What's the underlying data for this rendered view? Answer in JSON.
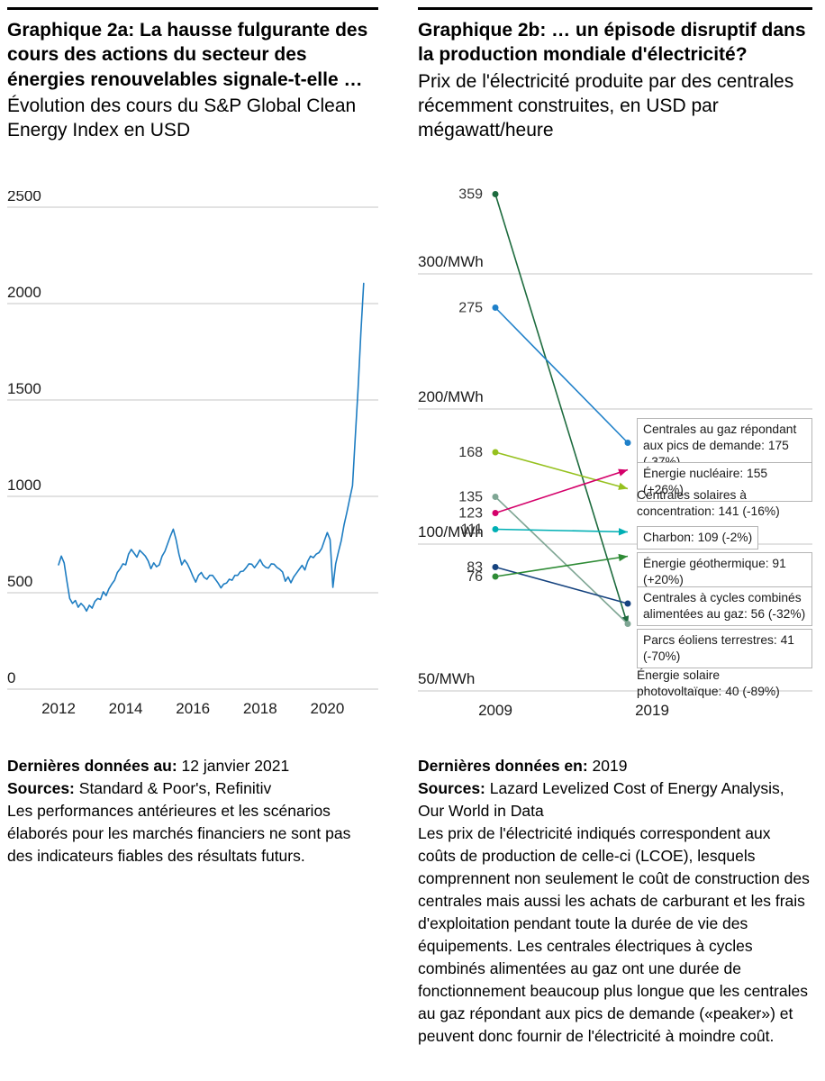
{
  "left_panel": {
    "title": "Graphique 2a: La hausse fulgurante des cours des actions du secteur des énergies renouvelables signale-t-elle …",
    "subtitle": "Évolution des cours du S&P Global Clean Energy Index en USD",
    "footer": {
      "updated_label": "Dernières données au:",
      "updated_value": "12 janvier 2021",
      "sources_label": "Sources:",
      "sources_value": "Standard & Poor's, Refinitiv",
      "note": "Les performances antérieures et les scénarios élaborés pour les marchés financiers ne sont pas des indicateurs fiables des résultats futurs."
    }
  },
  "right_panel": {
    "title": "Graphique 2b: … un épisode disruptif dans la production mondiale d'électricité?",
    "subtitle": "Prix de l'électricité produite par des centrales récemment construites, en USD par mégawatt/heure",
    "footer": {
      "updated_label": "Dernières données en:",
      "updated_value": "2019",
      "sources_label": "Sources:",
      "sources_value": "Lazard Levelized Cost of Energy Analysis, Our World in Data",
      "note": "Les prix de l'électricité indiqués correspondent aux coûts de production de celle-ci (LCOE), lesquels comprennent non seulement le coût de construction des centrales mais aussi les achats de carburant et les frais d'exploitation pendant toute la durée de vie des équipements. Les centrales électriques à cycles combinés alimentées au gaz ont une durée de fonctionnement beaucoup plus longue que les centrales au gaz répondant aux pics de demande («peaker») et peuvent donc fournir de l'électricité à moindre coût."
    }
  },
  "chart_data": [
    {
      "type": "line",
      "title": "Évolution des cours du S&P Global Clean Energy Index en USD",
      "series_name": "S&P Global Clean Energy Index",
      "unit": "USD",
      "x_start": 2012.0,
      "x_step": 0.08333,
      "values": [
        645,
        690,
        655,
        560,
        470,
        445,
        460,
        425,
        445,
        430,
        405,
        435,
        420,
        455,
        470,
        465,
        505,
        485,
        520,
        545,
        565,
        605,
        625,
        650,
        645,
        700,
        725,
        705,
        685,
        720,
        705,
        690,
        665,
        625,
        655,
        635,
        645,
        690,
        715,
        755,
        795,
        830,
        775,
        700,
        645,
        670,
        650,
        620,
        585,
        555,
        590,
        605,
        580,
        570,
        590,
        590,
        570,
        550,
        525,
        545,
        550,
        570,
        565,
        590,
        590,
        610,
        612,
        630,
        650,
        648,
        630,
        650,
        672,
        645,
        632,
        628,
        650,
        648,
        632,
        622,
        608,
        560,
        582,
        552,
        582,
        602,
        622,
        642,
        618,
        662,
        690,
        682,
        700,
        708,
        730,
        772,
        812,
        775,
        528,
        650,
        712,
        770,
        852,
        918,
        988,
        1055,
        1310,
        1560,
        1850,
        2105
      ],
      "ylim": [
        0,
        2500
      ],
      "yticks": [
        0,
        500,
        1000,
        1500,
        2000,
        2500
      ],
      "xticks": [
        2012,
        2014,
        2016,
        2018,
        2020
      ],
      "grid": true,
      "line_color": "#1e7dc2",
      "grid_color": "#c6c6c6"
    },
    {
      "type": "slope",
      "title": "Prix de l'électricité produite par des centrales récemment construites, en USD par mégawatt/heure",
      "unit": "USD/MWh",
      "x_labels": [
        "2009",
        "2019"
      ],
      "y_gridlines": [
        {
          "value": 300,
          "label": "300/MWh"
        },
        {
          "value": 200,
          "label": "200/MWh"
        },
        {
          "value": 100,
          "label": "100/MWh"
        },
        {
          "value": 50,
          "label": "50/MWh"
        }
      ],
      "series": [
        {
          "name": "Énergie solaire photovoltaïque",
          "value_2009": 359,
          "value_2019": 40,
          "change": "-89%",
          "color": "#1d6b3e",
          "boxed": false,
          "end_marker": "arrow"
        },
        {
          "name": "Centrales au gaz répondant aux pics de demande",
          "value_2009": 275,
          "value_2019": 175,
          "change": "-37%",
          "color": "#1f80c9",
          "boxed": true,
          "end_marker": "dot"
        },
        {
          "name": "Centrales solaires à concentration",
          "value_2009": 168,
          "value_2019": 141,
          "change": "-16%",
          "color": "#96c11f",
          "boxed": false,
          "end_marker": "arrow"
        },
        {
          "name": "Parcs éoliens terrestres",
          "value_2009": 135,
          "value_2019": 41,
          "change": "-70%",
          "color": "#7fa694",
          "boxed": true,
          "end_marker": "dot"
        },
        {
          "name": "Énergie nucléaire",
          "value_2009": 123,
          "value_2019": 155,
          "change": "+26%",
          "color": "#d4006a",
          "boxed": true,
          "end_marker": "arrow"
        },
        {
          "name": "Charbon",
          "value_2009": 111,
          "value_2019": 109,
          "change": "-2%",
          "color": "#00afb4",
          "boxed": true,
          "end_marker": "arrow"
        },
        {
          "name": "Centrales à cycles combinés alimentées au gaz",
          "value_2009": 83,
          "value_2019": 56,
          "change": "-32%",
          "color": "#16437f",
          "boxed": true,
          "end_marker": "dot"
        },
        {
          "name": "Énergie géothermique",
          "value_2009": 76,
          "value_2019": 91,
          "change": "+20%",
          "color": "#2e8b35",
          "boxed": true,
          "end_marker": "arrow"
        }
      ]
    }
  ]
}
